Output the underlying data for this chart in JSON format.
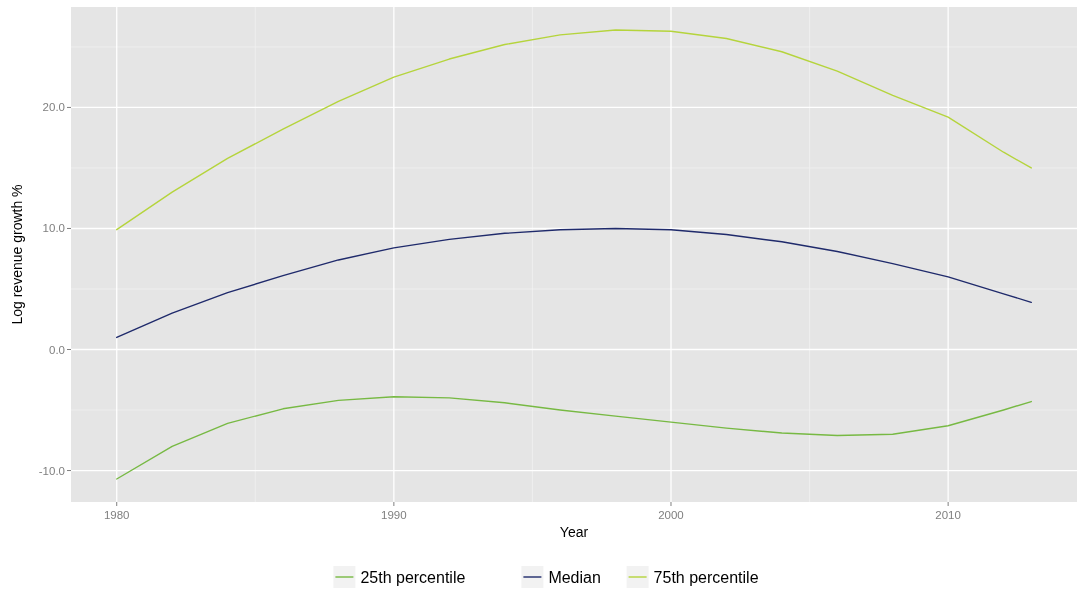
{
  "chart_data": {
    "type": "line",
    "xlabel": "Year",
    "ylabel": "Log revenue growth %",
    "x": [
      1980,
      1982,
      1984,
      1986,
      1988,
      1990,
      1992,
      1994,
      1996,
      1998,
      2000,
      2002,
      2004,
      2006,
      2008,
      2010,
      2012,
      2013
    ],
    "series": [
      {
        "name": "25th percentile",
        "color": "#77b943",
        "values": [
          -10.7,
          -8.0,
          -6.1,
          -4.9,
          -4.2,
          -3.9,
          -4.0,
          -4.4,
          -5.0,
          -5.5,
          -6.0,
          -6.5,
          -6.9,
          -7.1,
          -7.0,
          -6.3,
          -5.0,
          -4.3
        ]
      },
      {
        "name": "Median",
        "color": "#1f2a6b",
        "values": [
          1.0,
          3.0,
          4.7,
          6.1,
          7.4,
          8.4,
          9.1,
          9.6,
          9.9,
          10.0,
          9.9,
          9.5,
          8.9,
          8.1,
          7.1,
          6.0,
          4.6,
          3.9
        ]
      },
      {
        "name": "75th percentile",
        "color": "#b5d43c",
        "values": [
          9.9,
          13.0,
          15.8,
          18.2,
          20.5,
          22.5,
          24.0,
          25.2,
          26.0,
          26.4,
          26.3,
          25.7,
          24.6,
          23.0,
          21.0,
          19.2,
          16.3,
          15.0
        ]
      }
    ],
    "xlim": [
      1978.35,
      2014.65
    ],
    "xticks": [
      1980,
      1990,
      2000,
      2010
    ],
    "ylim": [
      -12.6,
      28.3
    ],
    "yticks": [
      {
        "value": -10,
        "label": "-10.0"
      },
      {
        "value": 0,
        "label": "0.0"
      },
      {
        "value": 10,
        "label": "10.0"
      },
      {
        "value": 20,
        "label": "20.0"
      }
    ],
    "grid": true,
    "legend": "bottom"
  }
}
